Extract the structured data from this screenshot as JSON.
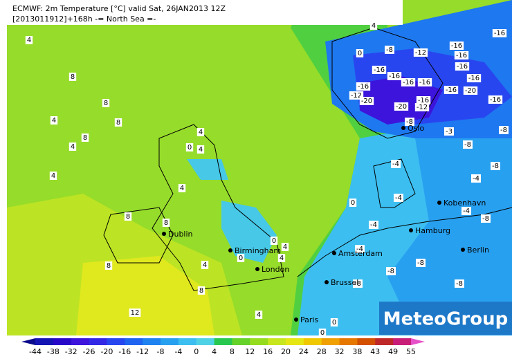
{
  "header": {
    "line1": "ECMWF: 2m Temperature [°C] valid Sat, 26JAN2013 12Z",
    "line2": "[2013011912]+168h  -= North Sea =-"
  },
  "contour_labels": [
    "4",
    "8",
    "8",
    "8",
    "4",
    "8",
    "4",
    "4",
    "8",
    "8",
    "8",
    "8",
    "12",
    "4",
    "0",
    "4",
    "4",
    "0",
    "0",
    "4",
    "4",
    "4",
    "4",
    "0",
    "0",
    "0",
    "4",
    "0",
    "-8",
    "-12",
    "-16",
    "-16",
    "-16",
    "-16",
    "-16",
    "-16",
    "-12",
    "-20",
    "-16",
    "-16",
    "-16",
    "-20",
    "-16",
    "-16",
    "-20",
    "-12",
    "-16",
    "-16",
    "-8",
    "-3",
    "-8",
    "-8",
    "-4",
    "-8",
    "-4",
    "-4",
    "-4",
    "-8",
    "-4",
    "-8",
    "-8",
    "-8",
    "-4",
    "-8"
  ],
  "cities": [
    "Oslo",
    "Kobenhavn",
    "Hamburg",
    "Berlin",
    "Amsterdam",
    "Brussel",
    "Paris",
    "London",
    "Birmingham",
    "Dublin"
  ],
  "colorbar": {
    "labels": [
      -44,
      -38,
      -32,
      -26,
      -20,
      -16,
      -12,
      -8,
      -4,
      0,
      4,
      8,
      12,
      16,
      20,
      24,
      28,
      32,
      38,
      43,
      49,
      55
    ],
    "colors": [
      "#0a0a8c",
      "#1414b4",
      "#2808c8",
      "#3c14dc",
      "#3228e6",
      "#2846f0",
      "#1e64f0",
      "#1e82f0",
      "#28a0f0",
      "#3cbef0",
      "#50d2e6",
      "#28c850",
      "#64d228",
      "#96dc1e",
      "#c8e61e",
      "#e6e614",
      "#f0c800",
      "#f0a000",
      "#e67800",
      "#d25000",
      "#be2828",
      "#c81e78",
      "#e650c8"
    ]
  },
  "logo": "MeteoGroup"
}
